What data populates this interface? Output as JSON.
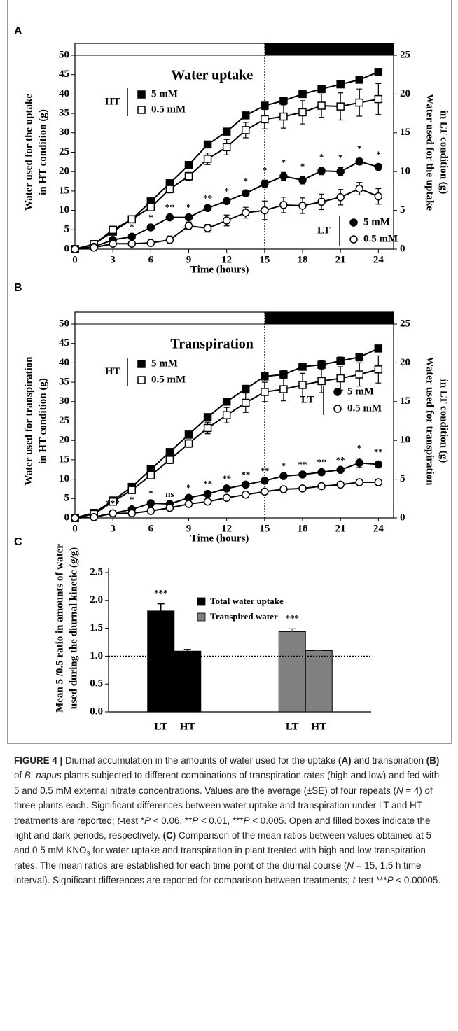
{
  "chart_data": [
    {
      "type": "line",
      "panel": "A",
      "title": "Water uptake",
      "xlabel": "Time (hours)",
      "ylabel": [
        "Water used for the uptake",
        "in HT condition (g)"
      ],
      "y2label": [
        "Water used for the uptake",
        "in LT condition (g)"
      ],
      "x": [
        0,
        1.5,
        3,
        4.5,
        6,
        7.5,
        9,
        10.5,
        12,
        13.5,
        15,
        16.5,
        18,
        19.5,
        21,
        22.5,
        24
      ],
      "xlim": [
        0,
        25.2
      ],
      "xticks": [
        0,
        3,
        6,
        9,
        12,
        15,
        18,
        21,
        24
      ],
      "ylim": [
        0,
        50
      ],
      "yticks": [
        0,
        5,
        10,
        15,
        20,
        25,
        30,
        35,
        40,
        45,
        50
      ],
      "y2lim": [
        0,
        25
      ],
      "y2ticks": [
        0,
        5,
        10,
        15,
        20,
        25
      ],
      "dark_period_start": 15,
      "groups": [
        {
          "label": "HT",
          "series": [
            {
              "name": "5 mM",
              "marker": "square",
              "filled": true,
              "color": "#000000",
              "values": [
                0,
                1.3,
                4.5,
                7.7,
                12.3,
                17,
                21.7,
                27,
                30.3,
                34.5,
                37,
                38.3,
                40,
                41.3,
                42.5,
                43.7,
                45.7
              ],
              "errors": [
                0,
                0,
                0,
                0,
                0,
                0,
                0,
                0,
                0,
                0,
                0.5,
                0.5,
                0.5,
                0.5,
                0.5,
                0.5,
                0.5
              ]
            },
            {
              "name": "0.5 mM",
              "marker": "square",
              "filled": false,
              "color": "#000000",
              "values": [
                0,
                1.2,
                5,
                7.7,
                10.8,
                15.5,
                18.8,
                23.3,
                26.3,
                30.7,
                33.5,
                34.2,
                35.3,
                37,
                36.8,
                37.8,
                38.7
              ],
              "errors": [
                0,
                0,
                0,
                0,
                0.5,
                1,
                1,
                1.5,
                2,
                2,
                2.5,
                3,
                3,
                3,
                3.5,
                3.5,
                4
              ]
            }
          ]
        },
        {
          "label": "LT",
          "series": [
            {
              "name": "5 mM",
              "marker": "circle",
              "filled": true,
              "color": "#000000",
              "axis": "y2",
              "values": [
                0,
                0.3,
                1.2,
                1.6,
                2.8,
                4.1,
                4.1,
                5.3,
                6.2,
                7.2,
                8.4,
                9.4,
                8.9,
                10.1,
                10,
                11.3,
                10.6
              ],
              "errors": [
                0,
                0,
                0,
                0,
                0,
                0,
                0,
                0,
                0,
                0.3,
                0.5,
                0.5,
                0.5,
                0.5,
                0.5,
                0.4,
                0.3
              ]
            },
            {
              "name": "0.5 mM",
              "marker": "circle",
              "filled": false,
              "color": "#000000",
              "axis": "y2",
              "values": [
                0,
                0.2,
                0.7,
                0.7,
                0.8,
                1.2,
                3,
                2.7,
                3.7,
                4.7,
                5,
                5.7,
                5.6,
                6.1,
                6.7,
                7.8,
                6.8
              ],
              "errors": [
                0,
                0,
                0,
                0,
                0,
                0.5,
                0.5,
                0.5,
                0.7,
                0.7,
                1.2,
                1,
                1,
                1,
                1,
                0.8,
                1
              ]
            }
          ]
        }
      ],
      "significance": [
        null,
        null,
        null,
        "*",
        "*",
        "**",
        "*",
        "**",
        "*",
        "*",
        "*",
        "*",
        "*",
        "*",
        "*",
        "*",
        "*"
      ]
    },
    {
      "type": "line",
      "panel": "B",
      "title": "Transpiration",
      "xlabel": "Time (hours)",
      "ylabel": [
        "Water used for transpiration",
        "in HT condition (g)"
      ],
      "y2label": [
        "Water used for transpiration",
        "in LT condition (g)"
      ],
      "x": [
        0,
        1.5,
        3,
        4.5,
        6,
        7.5,
        9,
        10.5,
        12,
        13.5,
        15,
        16.5,
        18,
        19.5,
        21,
        22.5,
        24
      ],
      "xlim": [
        0,
        25.2
      ],
      "xticks": [
        0,
        3,
        6,
        9,
        12,
        15,
        18,
        21,
        24
      ],
      "ylim": [
        0,
        50
      ],
      "yticks": [
        0,
        5,
        10,
        15,
        20,
        25,
        30,
        35,
        40,
        45,
        50
      ],
      "y2lim": [
        0,
        25
      ],
      "y2ticks": [
        0,
        5,
        10,
        15,
        20,
        25
      ],
      "dark_period_start": 15,
      "groups": [
        {
          "label": "HT",
          "series": [
            {
              "name": "5 mM",
              "marker": "square",
              "filled": true,
              "color": "#000000",
              "values": [
                0,
                1.3,
                4.5,
                8,
                12.5,
                17,
                21.5,
                26,
                30,
                33.3,
                36.5,
                37,
                39,
                39.5,
                40.5,
                41.5,
                43.7
              ],
              "errors": [
                0,
                0,
                0,
                0,
                0,
                0,
                0,
                0,
                0,
                0,
                0.5,
                1,
                0.5,
                1,
                1,
                1,
                0.5
              ]
            },
            {
              "name": "0.5 mM",
              "marker": "square",
              "filled": false,
              "color": "#000000",
              "values": [
                0,
                1,
                4.2,
                7.2,
                11,
                15,
                19.2,
                23.2,
                26.5,
                29.7,
                32.5,
                33.2,
                34.3,
                35.3,
                36,
                37,
                38.3
              ],
              "errors": [
                0,
                0,
                0.3,
                0.5,
                0.5,
                1,
                1,
                1.5,
                2,
                2.5,
                2.5,
                3,
                3,
                3,
                3,
                3,
                3.5
              ]
            }
          ]
        },
        {
          "label": "LT",
          "series": [
            {
              "name": "5 mM",
              "marker": "circle",
              "filled": true,
              "color": "#000000",
              "axis": "y2",
              "values": [
                0,
                0.1,
                0.6,
                1.1,
                1.9,
                1.8,
                2.6,
                3.1,
                3.8,
                4.3,
                4.8,
                5.4,
                5.6,
                5.9,
                6.2,
                7.1,
                6.9
              ],
              "errors": [
                0,
                0,
                0,
                0,
                0,
                0,
                0,
                0,
                0,
                0,
                0,
                0,
                0,
                0,
                0,
                0.6,
                0.3
              ]
            },
            {
              "name": "0.5 mM",
              "marker": "circle",
              "filled": false,
              "color": "#000000",
              "axis": "y2",
              "values": [
                0,
                0.1,
                0.6,
                0.6,
                0.9,
                1.3,
                1.8,
                2.1,
                2.6,
                3,
                3.4,
                3.7,
                3.8,
                4.1,
                4.3,
                4.6,
                4.6
              ],
              "errors": [
                0,
                0,
                0,
                0,
                0,
                0,
                0,
                0,
                0,
                0,
                0,
                0,
                0,
                0,
                0,
                0,
                0
              ]
            }
          ]
        }
      ],
      "significance": [
        null,
        null,
        "***",
        "*",
        "*",
        "ns",
        "*",
        "**",
        "**",
        "**",
        "**",
        "*",
        "**",
        "**",
        "**",
        "*",
        "**"
      ]
    },
    {
      "type": "bar",
      "panel": "C",
      "ylabel": [
        "Mean 5 /0.5 ratio in  amounts of water",
        "used during the diurnal kinetic (g/g)"
      ],
      "categories": [
        "LT",
        "HT"
      ],
      "ylim": [
        0,
        2.5
      ],
      "yticks": [
        {
          "value": 0,
          "label": "0.0"
        },
        0.5,
        {
          "value": 1,
          "label": "1.0"
        },
        1.5,
        {
          "value": 2,
          "label": "2.0"
        },
        2.5
      ],
      "reference_line": 1,
      "series": [
        {
          "name": "Total water uptake",
          "color": "#000000",
          "values": [
            1.81,
            1.09
          ],
          "errors": [
            0.13,
            0.03
          ],
          "significance": [
            "***",
            null
          ]
        },
        {
          "name": "Transpired water",
          "color": "#808080",
          "values": [
            1.44,
            1.1
          ],
          "errors": [
            0.05,
            0.01
          ],
          "significance": [
            "***",
            null
          ]
        }
      ]
    }
  ],
  "caption": [
    {
      "text": "FIGURE 4 |",
      "b": true
    },
    {
      "text": " Diurnal accumulation in the amounts of water used for the uptake "
    },
    {
      "text": "(A)",
      "b": true
    },
    {
      "text": " and transpiration "
    },
    {
      "text": "(B)",
      "b": true
    },
    {
      "text": " of "
    },
    {
      "text": "B. napus",
      "i": true
    },
    {
      "text": " plants subjected to different combinations of transpiration rates (high and low) and fed with 5 and 0.5 mM external nitrate concentrations. Values are the average (±SE) of four repeats ("
    },
    {
      "text": "N",
      "i": true
    },
    {
      "text": " = 4) of three plants each. Significant differences between water uptake and transpiration under LT and HT treatments are reported; "
    },
    {
      "text": "t",
      "i": true
    },
    {
      "text": "-test *"
    },
    {
      "text": "P",
      "i": true
    },
    {
      "text": " < 0.06, **"
    },
    {
      "text": "P",
      "i": true
    },
    {
      "text": " < 0.01, ***"
    },
    {
      "text": "P",
      "i": true
    },
    {
      "text": " < 0.005. Open and filled boxes indicate the light and dark periods, respectively. "
    },
    {
      "text": "(C)",
      "b": true
    },
    {
      "text": " Comparison of the mean ratios between values obtained at 5 and 0.5 mM KNO"
    },
    {
      "text": "3",
      "sub": true
    },
    {
      "text": " for water uptake and transpiration in plant treated with high and low transpiration rates. The mean ratios are established for each time point of the diurnal course ("
    },
    {
      "text": "N",
      "i": true
    },
    {
      "text": " = 15, 1.5 h time interval). Significant differences are reported for comparison between treatments; "
    },
    {
      "text": "t",
      "i": true
    },
    {
      "text": "-test ***"
    },
    {
      "text": "P",
      "i": true
    },
    {
      "text": " < 0.00005."
    }
  ]
}
